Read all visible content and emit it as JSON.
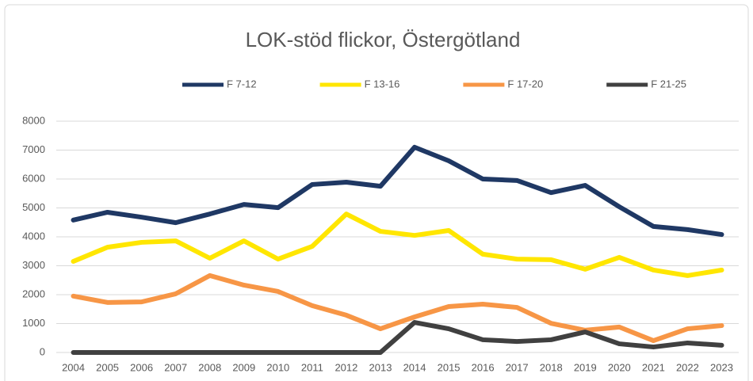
{
  "chart_data": {
    "type": "line",
    "title": "LOK-stöd flickor, Östergötland",
    "categories": [
      "2004",
      "2005",
      "2006",
      "2007",
      "2008",
      "2009",
      "2010",
      "2011",
      "2012",
      "2013",
      "2014",
      "2015",
      "2016",
      "2017",
      "2018",
      "2019",
      "2020",
      "2021",
      "2022",
      "2023"
    ],
    "series": [
      {
        "name": "F 7-12",
        "color": "#1f3864",
        "values": [
          4580,
          4850,
          4680,
          4490,
          4790,
          5120,
          5010,
          5810,
          5890,
          5750,
          7100,
          6630,
          6000,
          5950,
          5530,
          5780,
          5040,
          4360,
          4250,
          4080
        ]
      },
      {
        "name": "F 13-16",
        "color": "#ffe600",
        "values": [
          3150,
          3640,
          3810,
          3860,
          3260,
          3860,
          3230,
          3670,
          4790,
          4190,
          4050,
          4220,
          3400,
          3230,
          3210,
          2880,
          3290,
          2850,
          2660,
          2850
        ]
      },
      {
        "name": "F 17-20",
        "color": "#f79646",
        "values": [
          1950,
          1730,
          1750,
          2030,
          2660,
          2330,
          2110,
          1620,
          1290,
          820,
          1230,
          1590,
          1670,
          1560,
          1010,
          770,
          880,
          410,
          820,
          930
        ]
      },
      {
        "name": "F 21-25",
        "color": "#404040",
        "values": [
          0,
          0,
          0,
          0,
          0,
          0,
          0,
          0,
          0,
          0,
          1040,
          820,
          440,
          380,
          440,
          710,
          300,
          190,
          330,
          250
        ]
      }
    ],
    "ylim": [
      0,
      8000
    ],
    "yticks": [
      0,
      1000,
      2000,
      3000,
      4000,
      5000,
      6000,
      7000,
      8000
    ],
    "grid": true,
    "legend": "top"
  }
}
